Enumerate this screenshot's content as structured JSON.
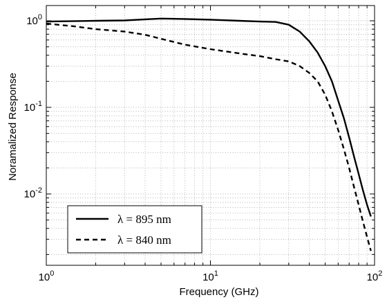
{
  "chart_data": {
    "type": "line",
    "title": "",
    "xlabel": "Frequency  (GHz)",
    "ylabel": "Noramalized Response",
    "xscale": "log",
    "yscale": "log",
    "xlim": [
      1,
      100
    ],
    "ylim": [
      0.0015,
      1.5
    ],
    "grid": true,
    "legend_position": "bottom-left",
    "x_ticks": [
      {
        "value": 1,
        "base": "10",
        "exp": "0"
      },
      {
        "value": 10,
        "base": "10",
        "exp": "1"
      },
      {
        "value": 100,
        "base": "10",
        "exp": "2"
      }
    ],
    "y_ticks": [
      {
        "value": 0.01,
        "base": "10",
        "exp": "-2"
      },
      {
        "value": 0.1,
        "base": "10",
        "exp": "-1"
      },
      {
        "value": 1,
        "base": "10",
        "exp": "0"
      }
    ],
    "series": [
      {
        "name": "λ = 895 nm",
        "style": "solid",
        "color": "#000000",
        "x": [
          1,
          2,
          3,
          4,
          5,
          7,
          10,
          15,
          20,
          25,
          30,
          35,
          40,
          45,
          50,
          55,
          60,
          65,
          70,
          75,
          80,
          85,
          90,
          95
        ],
        "y": [
          0.98,
          1.0,
          1.01,
          1.04,
          1.06,
          1.05,
          1.03,
          1.0,
          0.98,
          0.97,
          0.9,
          0.75,
          0.58,
          0.43,
          0.3,
          0.2,
          0.12,
          0.075,
          0.045,
          0.027,
          0.017,
          0.011,
          0.0075,
          0.0055
        ]
      },
      {
        "name": "λ = 840 nm",
        "style": "dashed",
        "color": "#000000",
        "x": [
          1,
          1.5,
          2,
          3,
          4,
          5,
          7,
          10,
          15,
          20,
          25,
          30,
          35,
          40,
          45,
          50,
          55,
          60,
          65,
          70,
          75,
          80,
          85,
          90,
          95
        ],
        "y": [
          0.93,
          0.86,
          0.8,
          0.75,
          0.69,
          0.62,
          0.53,
          0.47,
          0.42,
          0.39,
          0.36,
          0.34,
          0.3,
          0.25,
          0.2,
          0.14,
          0.09,
          0.055,
          0.033,
          0.02,
          0.012,
          0.0075,
          0.0048,
          0.0032,
          0.0022
        ]
      }
    ]
  }
}
